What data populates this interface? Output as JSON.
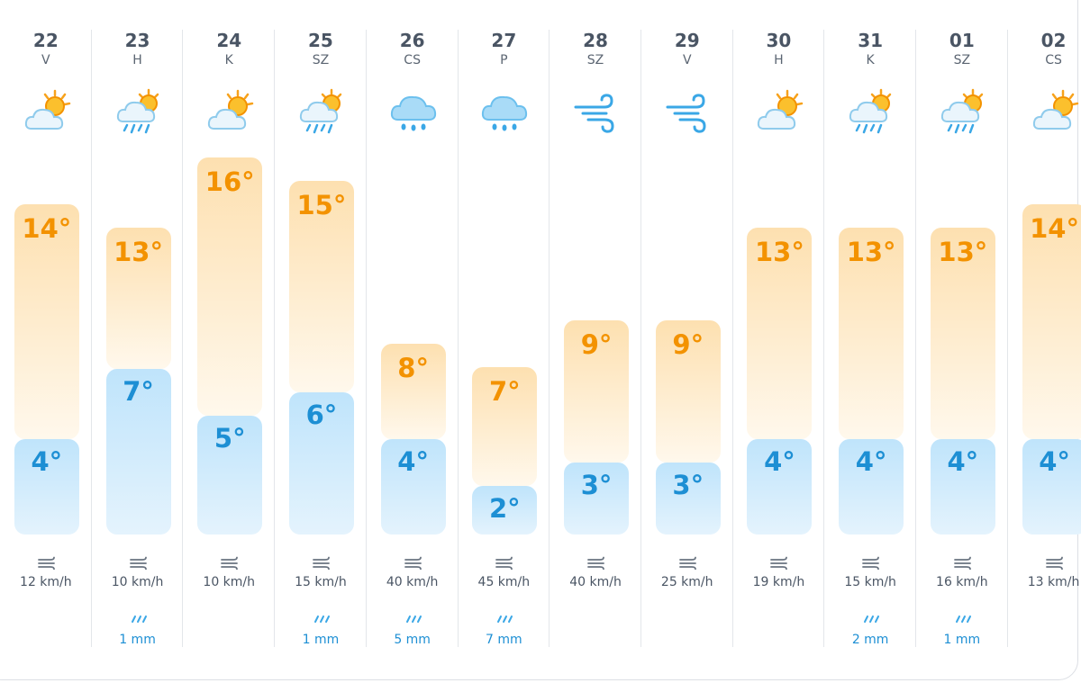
{
  "forecast": {
    "days": [
      {
        "date": "22",
        "dow": "V",
        "icon": "partly-cloudy-icon",
        "max": "14°",
        "min": "4°",
        "max_temp": 14,
        "min_temp": 4,
        "wind": "12 km/h",
        "rain": ""
      },
      {
        "date": "23",
        "dow": "H",
        "icon": "rain-showers-sun-icon",
        "max": "13°",
        "min": "7°",
        "max_temp": 13,
        "min_temp": 7,
        "wind": "10 km/h",
        "rain": "1 mm"
      },
      {
        "date": "24",
        "dow": "K",
        "icon": "partly-cloudy-icon",
        "max": "16°",
        "min": "5°",
        "max_temp": 16,
        "min_temp": 5,
        "wind": "10 km/h",
        "rain": ""
      },
      {
        "date": "25",
        "dow": "SZ",
        "icon": "rain-showers-sun-icon",
        "max": "15°",
        "min": "6°",
        "max_temp": 15,
        "min_temp": 6,
        "wind": "15 km/h",
        "rain": "1 mm"
      },
      {
        "date": "26",
        "dow": "CS",
        "icon": "rain-cloud-icon",
        "max": "8°",
        "min": "4°",
        "max_temp": 8,
        "min_temp": 4,
        "wind": "40 km/h",
        "rain": "5 mm"
      },
      {
        "date": "27",
        "dow": "P",
        "icon": "rain-cloud-icon",
        "max": "7°",
        "min": "2°",
        "max_temp": 7,
        "min_temp": 2,
        "wind": "45 km/h",
        "rain": "7 mm"
      },
      {
        "date": "28",
        "dow": "SZ",
        "icon": "wind-icon",
        "max": "9°",
        "min": "3°",
        "max_temp": 9,
        "min_temp": 3,
        "wind": "40 km/h",
        "rain": ""
      },
      {
        "date": "29",
        "dow": "V",
        "icon": "wind-icon",
        "max": "9°",
        "min": "3°",
        "max_temp": 9,
        "min_temp": 3,
        "wind": "25 km/h",
        "rain": ""
      },
      {
        "date": "30",
        "dow": "H",
        "icon": "partly-cloudy-icon",
        "max": "13°",
        "min": "4°",
        "max_temp": 13,
        "min_temp": 4,
        "wind": "19 km/h",
        "rain": ""
      },
      {
        "date": "31",
        "dow": "K",
        "icon": "rain-showers-sun-icon",
        "max": "13°",
        "min": "4°",
        "max_temp": 13,
        "min_temp": 4,
        "wind": "15 km/h",
        "rain": "2 mm"
      },
      {
        "date": "01",
        "dow": "SZ",
        "icon": "rain-showers-sun-icon",
        "max": "13°",
        "min": "4°",
        "max_temp": 13,
        "min_temp": 4,
        "wind": "16 km/h",
        "rain": "1 mm"
      },
      {
        "date": "02",
        "dow": "CS",
        "icon": "partly-cloudy-icon",
        "max": "14°",
        "min": "4°",
        "max_temp": 14,
        "min_temp": 4,
        "wind": "13 km/h",
        "rain": ""
      }
    ]
  },
  "colors": {
    "max_text": "#f39200",
    "min_text": "#1d8fd4",
    "max_bar": "#fde0b0",
    "min_bar": "#bfe4fb",
    "rain_text": "#1d8fd4",
    "label_text": "#4a5564"
  }
}
